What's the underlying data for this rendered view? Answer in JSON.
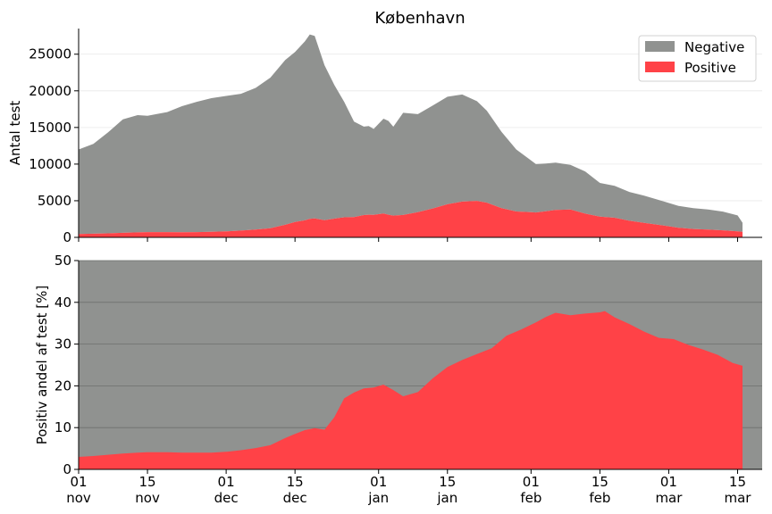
{
  "chart_data": [
    {
      "type": "area",
      "title": "København",
      "xlabel": "",
      "ylabel": "Antal test",
      "ylim": [
        0,
        28500
      ],
      "yticks": [
        0,
        5000,
        10000,
        15000,
        20000,
        25000
      ],
      "xrange": [
        "2021-11-01",
        "2022-03-20"
      ],
      "stacked": true,
      "legend_position": "top-right",
      "grid": "horizontal",
      "series": [
        {
          "name": "Negative",
          "color": "#909290",
          "x": [
            "2021-11-01",
            "2021-11-04",
            "2021-11-07",
            "2021-11-10",
            "2021-11-13",
            "2021-11-15",
            "2021-11-19",
            "2021-11-22",
            "2021-11-25",
            "2021-11-28",
            "2021-12-01",
            "2021-12-04",
            "2021-12-07",
            "2021-12-10",
            "2021-12-13",
            "2021-12-15",
            "2021-12-17",
            "2021-12-18",
            "2021-12-19",
            "2021-12-21",
            "2021-12-23",
            "2021-12-25",
            "2021-12-27",
            "2021-12-29",
            "2021-12-30",
            "2021-12-31",
            "2022-01-02",
            "2022-01-03",
            "2022-01-04",
            "2022-01-06",
            "2022-01-09",
            "2022-01-12",
            "2022-01-15",
            "2022-01-18",
            "2022-01-21",
            "2022-01-23",
            "2022-01-26",
            "2022-01-29",
            "2022-02-01",
            "2022-02-02",
            "2022-02-04",
            "2022-02-06",
            "2022-02-09",
            "2022-02-12",
            "2022-02-15",
            "2022-02-18",
            "2022-02-21",
            "2022-02-24",
            "2022-02-28",
            "2022-03-03",
            "2022-03-06",
            "2022-03-09",
            "2022-03-12",
            "2022-03-15",
            "2022-03-16"
          ],
          "values": [
            11550,
            12250,
            13800,
            15480,
            16000,
            15880,
            16380,
            17200,
            17780,
            18240,
            18480,
            18680,
            19340,
            20540,
            22480,
            23200,
            24420,
            25180,
            24920,
            21160,
            18240,
            15760,
            13030,
            12080,
            12110,
            11730,
            12930,
            12810,
            12130,
            13940,
            13380,
            14050,
            14680,
            14620,
            13600,
            12560,
            10400,
            8470,
            7070,
            6600,
            6500,
            6450,
            6100,
            5760,
            4590,
            4350,
            3940,
            3710,
            3290,
            2990,
            2850,
            2730,
            2560,
            2170,
            1250
          ]
        },
        {
          "name": "Positive",
          "color": "#ff4247",
          "x": [
            "2021-11-01",
            "2021-11-04",
            "2021-11-07",
            "2021-11-10",
            "2021-11-13",
            "2021-11-15",
            "2021-11-19",
            "2021-11-22",
            "2021-11-25",
            "2021-11-28",
            "2021-12-01",
            "2021-12-04",
            "2021-12-07",
            "2021-12-10",
            "2021-12-13",
            "2021-12-15",
            "2021-12-17",
            "2021-12-18",
            "2021-12-19",
            "2021-12-21",
            "2021-12-23",
            "2021-12-25",
            "2021-12-27",
            "2021-12-29",
            "2021-12-30",
            "2021-12-31",
            "2022-01-02",
            "2022-01-03",
            "2022-01-04",
            "2022-01-06",
            "2022-01-09",
            "2022-01-12",
            "2022-01-15",
            "2022-01-18",
            "2022-01-21",
            "2022-01-23",
            "2022-01-26",
            "2022-01-29",
            "2022-02-01",
            "2022-02-02",
            "2022-02-04",
            "2022-02-06",
            "2022-02-09",
            "2022-02-12",
            "2022-02-15",
            "2022-02-18",
            "2022-02-21",
            "2022-02-24",
            "2022-02-28",
            "2022-03-03",
            "2022-03-06",
            "2022-03-09",
            "2022-03-12",
            "2022-03-15",
            "2022-03-16"
          ],
          "values": [
            450,
            500,
            550,
            620,
            680,
            720,
            720,
            700,
            720,
            760,
            820,
            920,
            1060,
            1260,
            1720,
            2100,
            2330,
            2520,
            2580,
            2340,
            2560,
            2740,
            2770,
            3040,
            3090,
            3070,
            3270,
            3090,
            2970,
            3060,
            3440,
            3950,
            4520,
            4880,
            4980,
            4740,
            4000,
            3530,
            3430,
            3400,
            3570,
            3750,
            3800,
            3240,
            2840,
            2680,
            2260,
            1990,
            1610,
            1310,
            1150,
            1070,
            960,
            830,
            750
          ]
        }
      ]
    },
    {
      "type": "area",
      "title": "",
      "xlabel": "",
      "ylabel": "Positiv andel af test [%]",
      "ylim": [
        0,
        50
      ],
      "yticks": [
        0,
        10,
        20,
        30,
        40,
        50
      ],
      "xrange": [
        "2021-11-01",
        "2022-03-20"
      ],
      "grid": "horizontal",
      "background_color": "#909290",
      "series": [
        {
          "color": "#ff4247",
          "x": [
            "2021-11-01",
            "2021-11-04",
            "2021-11-07",
            "2021-11-10",
            "2021-11-13",
            "2021-11-15",
            "2021-11-19",
            "2021-11-22",
            "2021-11-25",
            "2021-11-28",
            "2021-12-01",
            "2021-12-04",
            "2021-12-07",
            "2021-12-10",
            "2021-12-13",
            "2021-12-15",
            "2021-12-17",
            "2021-12-19",
            "2021-12-21",
            "2021-12-23",
            "2021-12-25",
            "2021-12-27",
            "2021-12-29",
            "2021-12-31",
            "2022-01-02",
            "2022-01-04",
            "2022-01-06",
            "2022-01-09",
            "2022-01-12",
            "2022-01-15",
            "2022-01-18",
            "2022-01-21",
            "2022-01-24",
            "2022-01-27",
            "2022-01-30",
            "2022-02-02",
            "2022-02-04",
            "2022-02-06",
            "2022-02-09",
            "2022-02-12",
            "2022-02-15",
            "2022-02-16",
            "2022-02-18",
            "2022-02-21",
            "2022-02-24",
            "2022-02-27",
            "2022-03-02",
            "2022-03-05",
            "2022-03-08",
            "2022-03-11",
            "2022-03-14",
            "2022-03-16"
          ],
          "values": [
            3.0,
            3.2,
            3.5,
            3.8,
            4.0,
            4.1,
            4.1,
            4.0,
            4.0,
            4.0,
            4.2,
            4.6,
            5.1,
            5.8,
            7.5,
            8.5,
            9.4,
            9.9,
            9.5,
            12.5,
            17.0,
            18.4,
            19.4,
            19.6,
            20.3,
            19.0,
            17.5,
            18.5,
            21.8,
            24.5,
            26.2,
            27.6,
            29.0,
            32.0,
            33.5,
            35.2,
            36.5,
            37.5,
            36.9,
            37.3,
            37.6,
            37.9,
            36.4,
            34.8,
            33.0,
            31.5,
            31.2,
            29.8,
            28.7,
            27.4,
            25.5,
            24.8
          ]
        }
      ]
    }
  ],
  "xaxis": {
    "ticks": [
      {
        "date": "2021-11-01",
        "day": "01",
        "month": "nov"
      },
      {
        "date": "2021-11-15",
        "day": "15",
        "month": "nov"
      },
      {
        "date": "2021-12-01",
        "day": "01",
        "month": "dec"
      },
      {
        "date": "2021-12-15",
        "day": "15",
        "month": "dec"
      },
      {
        "date": "2022-01-01",
        "day": "01",
        "month": "jan"
      },
      {
        "date": "2022-01-15",
        "day": "15",
        "month": "jan"
      },
      {
        "date": "2022-02-01",
        "day": "01",
        "month": "feb"
      },
      {
        "date": "2022-02-15",
        "day": "15",
        "month": "feb"
      },
      {
        "date": "2022-03-01",
        "day": "01",
        "month": "mar"
      },
      {
        "date": "2022-03-15",
        "day": "15",
        "month": "mar"
      }
    ]
  }
}
